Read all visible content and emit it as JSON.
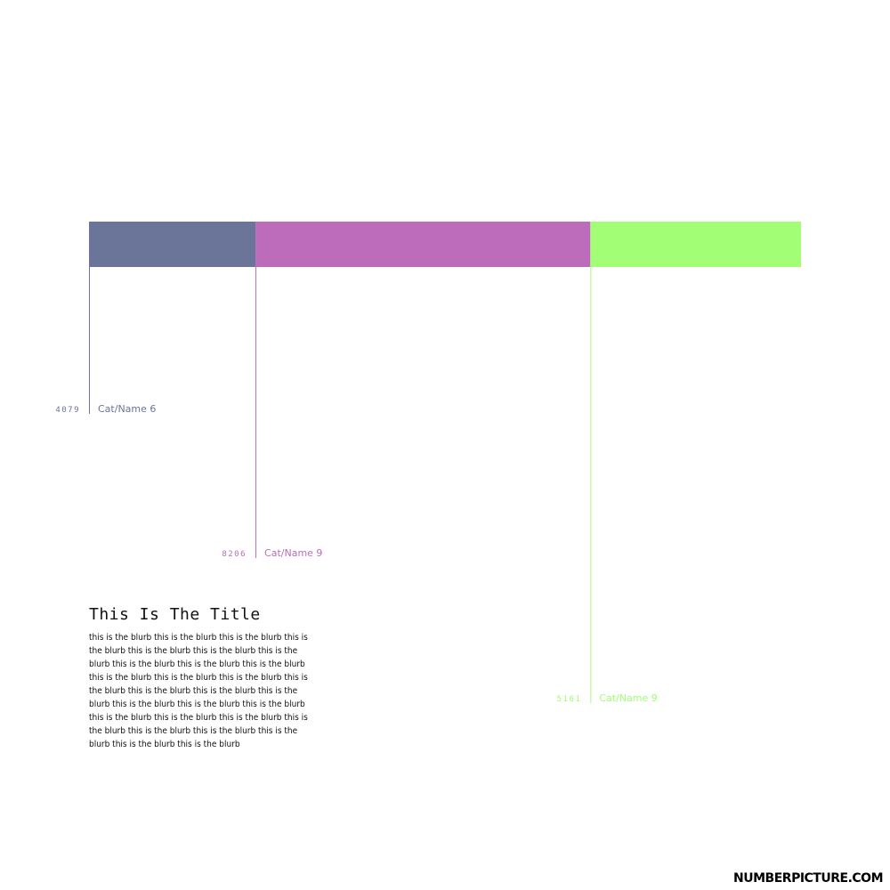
{
  "title": "This Is The Title",
  "blurb": "this is the blurb this is the blurb this is the blurb this is the blurb this is the blurb this is the blurb this is the blurb this is the blurb this is the blurb this is the blurb this is the blurb this is the blurb this is the blurb this is the blurb this is the blurb this is the blurb this is the blurb this is the blurb this is the blurb this is the blurb this is the blurb this is the blurb this is the blurb this is the blurb this is the blurb this is the blurb this is the blurb this is the blurb this is the blurb",
  "brand": "NUMBERPICTURE.COM",
  "chart_data": {
    "type": "bar",
    "subtype": "stacked-horizontal",
    "categories": [
      "Cat/Name 6",
      "Cat/Name 9",
      "Cat/Name 9"
    ],
    "values": [
      4079,
      8206,
      5161
    ],
    "value_labels": [
      "4079",
      "8206",
      "5161"
    ],
    "colors": [
      "#6b7499",
      "#bc6cbb",
      "#a2fe74"
    ],
    "grid": false,
    "legend": "none"
  }
}
